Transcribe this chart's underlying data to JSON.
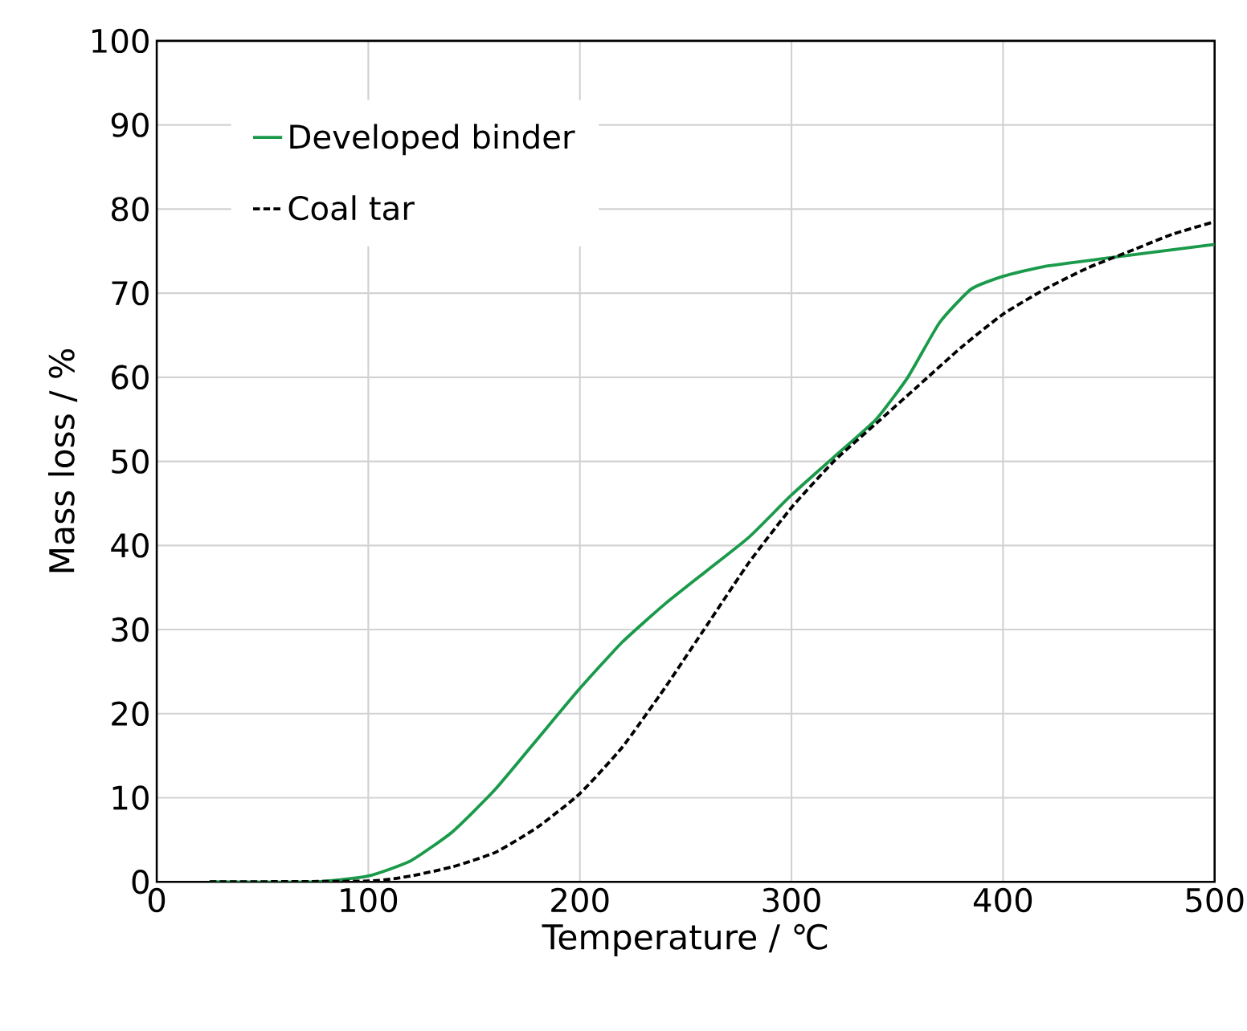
{
  "chart_data": {
    "type": "line",
    "xlabel": "Temperature / ℃",
    "ylabel": "Mass loss / %",
    "xlim": [
      0,
      500
    ],
    "xticks": [
      0,
      100,
      200,
      300,
      400,
      500
    ],
    "ylim": [
      0,
      100
    ],
    "yticks": [
      0,
      10,
      20,
      30,
      40,
      50,
      60,
      70,
      80,
      90,
      100
    ],
    "grid": true,
    "legend": "top left",
    "marker": "none",
    "series": [
      {
        "name": "Developed binder",
        "color": "#1a9a4a",
        "line_style": "solid",
        "x": [
          25,
          75,
          100,
          120,
          140,
          160,
          180,
          200,
          220,
          240,
          260,
          280,
          300,
          320,
          340,
          355,
          370,
          385,
          400,
          420,
          450,
          500
        ],
        "values": [
          0,
          0,
          0.7,
          2.5,
          6,
          11,
          17,
          23,
          28.5,
          33,
          37,
          41,
          46,
          50.5,
          55,
          60,
          66.5,
          70.5,
          72,
          73.2,
          74.2,
          75.8
        ]
      },
      {
        "name": "Coal tar",
        "color": "#000000",
        "line_style": "dashed",
        "x": [
          25,
          100,
          120,
          140,
          160,
          180,
          200,
          220,
          240,
          260,
          280,
          300,
          320,
          340,
          360,
          380,
          400,
          420,
          440,
          460,
          480,
          500
        ],
        "values": [
          0,
          0.1,
          0.7,
          1.8,
          3.5,
          6.5,
          10.5,
          16,
          23,
          30.5,
          38,
          44.5,
          50,
          54.5,
          59,
          63.5,
          67.5,
          70.5,
          73,
          75,
          77,
          78.5
        ]
      }
    ]
  }
}
